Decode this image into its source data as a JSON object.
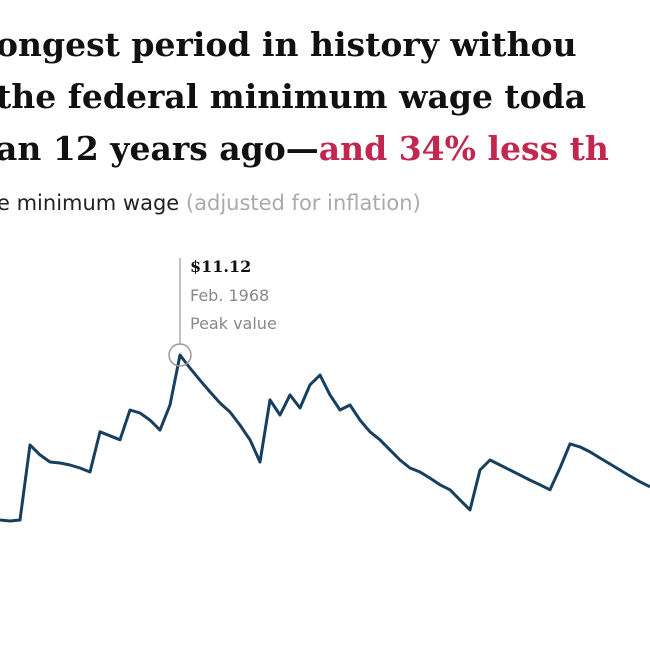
{
  "chart_data": {
    "type": "line",
    "title": [
      "ongest period in history withou",
      "the federal minimum wage toda",
      "an 12 years ago—"
    ],
    "title_highlight": "and 34% less th",
    "subtitle": "e minimum wage",
    "subtitle_note": "(adjusted for inflation)",
    "color": "#173f5f",
    "values": [
      6.2,
      6.17,
      6.2,
      8.44,
      8.14,
      7.93,
      7.9,
      7.84,
      7.75,
      7.63,
      8.83,
      8.71,
      8.59,
      9.48,
      9.39,
      9.18,
      8.88,
      9.63,
      11.12,
      10.73,
      10.37,
      10.02,
      9.69,
      9.42,
      9.03,
      8.59,
      7.93,
      9.78,
      9.33,
      9.93,
      9.54,
      10.23,
      10.52,
      9.93,
      9.48,
      9.63,
      9.18,
      8.83,
      8.59,
      8.29,
      7.99,
      7.75,
      7.63,
      7.45,
      7.25,
      7.1,
      6.8,
      6.5,
      7.69,
      7.99,
      7.84,
      7.69,
      7.54,
      7.39,
      7.25,
      7.1,
      7.75,
      8.47,
      8.38,
      8.23,
      8.05,
      7.87,
      7.69,
      7.51,
      7.34,
      7.19
    ],
    "peak": {
      "value": 11.12,
      "label": "$11.12",
      "date": "Feb. 1968",
      "note": "Peak value"
    }
  }
}
